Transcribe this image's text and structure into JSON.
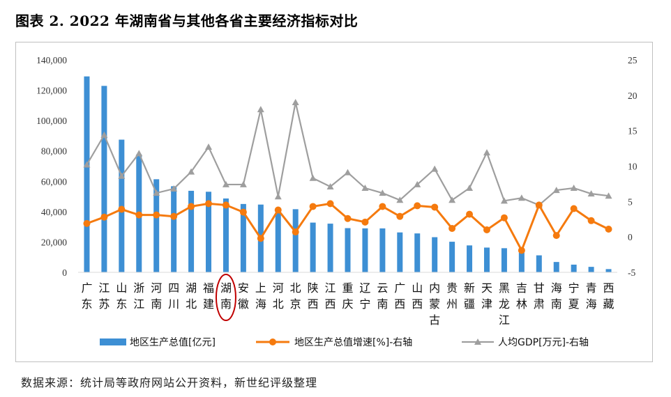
{
  "title": "图表 2. 2022 年湖南省与其他各省主要经济指标对比",
  "source": "数据来源：统计局等政府网站公开资料，新世纪评级整理",
  "colors": {
    "bar": "#3d8fd4",
    "growth": "#f57a0e",
    "gdp_pc": "#9e9e9e",
    "highlight": "#c00000"
  },
  "chart_data": {
    "type": "bar",
    "categories": [
      "广东",
      "江苏",
      "山东",
      "浙江",
      "河南",
      "四川",
      "湖北",
      "福建",
      "湖南",
      "安徽",
      "上海",
      "河北",
      "北京",
      "陕西",
      "江西",
      "重庆",
      "辽宁",
      "云南",
      "广西",
      "山西",
      "内蒙古",
      "贵州",
      "新疆",
      "天津",
      "黑龙江",
      "吉林",
      "甘肃",
      "海南",
      "宁夏",
      "青海",
      "西藏"
    ],
    "highlight_category": "湖南",
    "left_axis": {
      "ylim": [
        0,
        140000
      ],
      "ticks": [
        "0",
        "20,000",
        "40,000",
        "60,000",
        "80,000",
        "100,000",
        "120,000",
        "140,000"
      ]
    },
    "right_axis": {
      "ylim": [
        -5,
        25
      ],
      "ticks": [
        "-5",
        "0",
        "5",
        "10",
        "15",
        "20",
        "25"
      ]
    },
    "series": [
      {
        "name": "地区生产总值[亿元]",
        "type": "bar",
        "axis": "left",
        "values": [
          129119,
          122876,
          87435,
          77715,
          61345,
          56750,
          53735,
          53110,
          48670,
          45045,
          44653,
          42370,
          41611,
          32773,
          32075,
          29129,
          28975,
          28954,
          26301,
          25643,
          23159,
          20165,
          17741,
          16311,
          15901,
          13070,
          11201,
          6818,
          5070,
          3610,
          2133
        ]
      },
      {
        "name": "地区生产总值增速[%]-右轴",
        "type": "line",
        "axis": "right",
        "values": [
          1.9,
          2.8,
          3.9,
          3.1,
          3.1,
          2.9,
          4.3,
          4.7,
          4.5,
          3.5,
          -0.2,
          3.8,
          0.7,
          4.3,
          4.7,
          2.6,
          2.1,
          4.3,
          2.9,
          4.4,
          4.2,
          1.2,
          3.2,
          1.0,
          2.7,
          -1.9,
          4.5,
          0.2,
          4.0,
          2.3,
          1.1
        ]
      },
      {
        "name": "人均GDP[万元]-右轴",
        "type": "line",
        "axis": "right",
        "values": [
          10.2,
          14.4,
          8.6,
          11.8,
          6.2,
          6.8,
          9.2,
          12.7,
          7.4,
          7.4,
          18.0,
          5.7,
          19.0,
          8.3,
          7.1,
          9.1,
          6.9,
          6.2,
          5.2,
          7.4,
          9.6,
          5.2,
          6.9,
          11.9,
          5.1,
          5.5,
          4.5,
          6.6,
          6.9,
          6.1,
          5.8
        ]
      }
    ]
  }
}
